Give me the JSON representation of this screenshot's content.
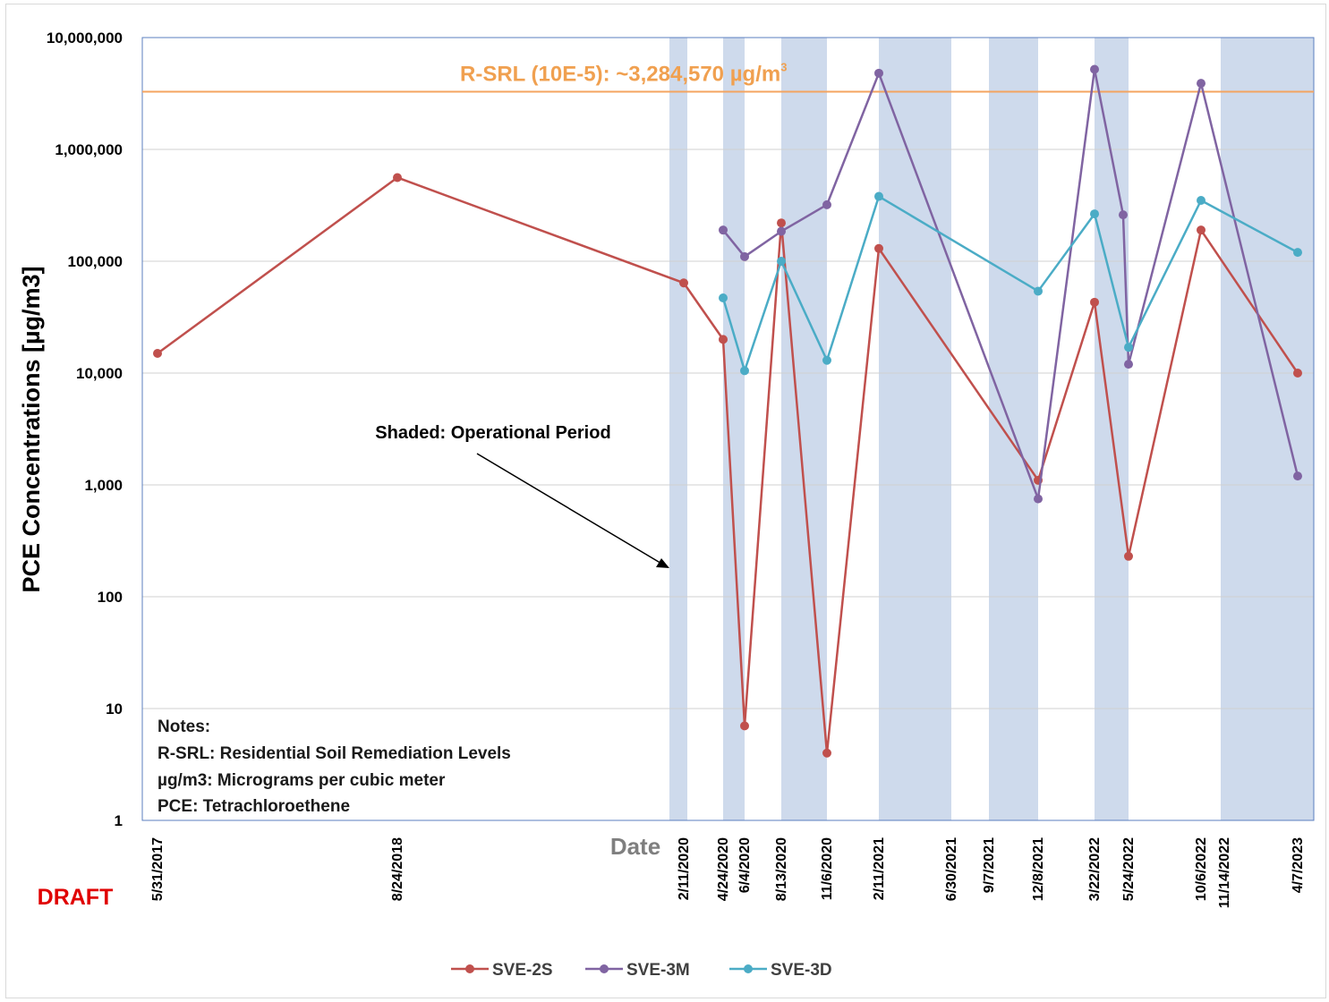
{
  "watermark": "DRAFT",
  "chart_data": {
    "type": "line",
    "title": "",
    "xlabel": "Date",
    "ylabel": "PCE Concentrations [µg/m3]",
    "yscale": "log",
    "ylim": [
      1,
      10000000
    ],
    "yticks": [
      "1",
      "10",
      "100",
      "1,000",
      "10,000",
      "100,000",
      "1,000,000",
      "10,000,000"
    ],
    "grid": true,
    "x_tick_labels": [
      "5/31/2017",
      "8/24/2018",
      "2/11/2020",
      "4/24/2020",
      "6/4/2020",
      "8/13/2020",
      "11/6/2020",
      "2/11/2021",
      "6/30/2021",
      "9/7/2021",
      "12/8/2021",
      "3/22/2022",
      "5/24/2022",
      "10/6/2022",
      "11/14/2022",
      "4/7/2023"
    ],
    "shaded_periods": [
      [
        "2/11/2020",
        "3/10/2020"
      ],
      [
        "4/24/2020",
        "6/4/2020"
      ],
      [
        "8/13/2020",
        "11/6/2020"
      ],
      [
        "2/11/2021",
        "6/30/2021"
      ],
      [
        "9/7/2021",
        "12/8/2021"
      ],
      [
        "3/22/2022",
        "5/24/2022"
      ],
      [
        "11/14/2022",
        "4/7/2023"
      ]
    ],
    "reference_line": {
      "label": "R-SRL (10E-5): ~3,284,570 µg/m",
      "label_sup": "3",
      "value": 3284570,
      "color": "#f4a460"
    },
    "annotation": "Shaded: Operational Period",
    "notes": [
      "Notes:",
      "R-SRL: Residential Soil Remediation Levels",
      "µg/m3: Micrograms per cubic meter",
      "PCE: Tetrachloroethene"
    ],
    "legend_position": "bottom",
    "series": [
      {
        "name": "SVE-2S",
        "color": "#c0504d",
        "points": [
          [
            "5/31/2017",
            15000
          ],
          [
            "8/24/2018",
            560000
          ],
          [
            "2/11/2020",
            64000
          ],
          [
            "4/24/2020",
            20000
          ],
          [
            "6/4/2020",
            7
          ],
          [
            "8/13/2020",
            220000
          ],
          [
            "11/6/2020",
            4
          ],
          [
            "2/11/2021",
            130000
          ],
          [
            "12/8/2021",
            1100
          ],
          [
            "3/22/2022",
            43000
          ],
          [
            "5/24/2022",
            230
          ],
          [
            "10/6/2022",
            190000
          ],
          [
            "4/7/2023",
            10000
          ]
        ]
      },
      {
        "name": "SVE-3M",
        "color": "#8064a2",
        "points": [
          [
            "4/24/2020",
            190000
          ],
          [
            "6/4/2020",
            110000
          ],
          [
            "8/13/2020",
            185000
          ],
          [
            "11/6/2020",
            320000
          ],
          [
            "2/11/2021",
            4800000
          ],
          [
            "12/8/2021",
            750
          ],
          [
            "3/22/2022",
            5200000
          ],
          [
            "5/14/2022",
            260000
          ],
          [
            "5/24/2022",
            12000
          ],
          [
            "10/6/2022",
            3900000
          ],
          [
            "4/7/2023",
            1200
          ]
        ]
      },
      {
        "name": "SVE-3D",
        "color": "#4bacc6",
        "points": [
          [
            "4/24/2020",
            47000
          ],
          [
            "6/4/2020",
            10500
          ],
          [
            "8/13/2020",
            100000
          ],
          [
            "11/6/2020",
            13000
          ],
          [
            "2/11/2021",
            380000
          ],
          [
            "12/8/2021",
            54000
          ],
          [
            "3/22/2022",
            265000
          ],
          [
            "5/24/2022",
            17000
          ],
          [
            "10/6/2022",
            350000
          ],
          [
            "4/7/2023",
            120000
          ]
        ]
      }
    ]
  }
}
